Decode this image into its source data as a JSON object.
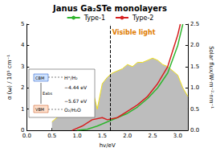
{
  "chart_data": {
    "type": "line",
    "title": "Janus Ga₂STe monolayers",
    "x_label": "hv/eV",
    "y_label": "α (ω) / 10⁵ cm⁻¹",
    "y2_label": "Solar flux/W·m⁻²·nm⁻¹",
    "xlim": [
      0,
      3.2
    ],
    "xticks": [
      {
        "value": 0,
        "label": "0.0"
      },
      {
        "value": 0.5,
        "label": "0.5"
      },
      {
        "value": 1,
        "label": "1.0"
      },
      {
        "value": 1.5,
        "label": "1.5"
      },
      {
        "value": 2,
        "label": "2.0"
      },
      {
        "value": 2.5,
        "label": "2.5"
      },
      {
        "value": 3,
        "label": "3.0"
      }
    ],
    "ylim": [
      0,
      5
    ],
    "yticks": [
      0,
      1,
      2,
      3,
      4,
      5
    ],
    "y2lim": [
      0,
      2.5
    ],
    "y2ticks": [
      {
        "value": 0,
        "label": "0.0"
      },
      {
        "value": 0.5,
        "label": "0.5"
      },
      {
        "value": 1,
        "label": "1.0"
      },
      {
        "value": 1.5,
        "label": "1.5"
      },
      {
        "value": 2,
        "label": "2.0"
      },
      {
        "value": 2.5,
        "label": "2.5"
      }
    ],
    "legend": "top",
    "series": [
      {
        "type": "area",
        "axis": "y2",
        "color": "#f2e21b",
        "x": [
          0.5,
          0.6,
          0.7,
          0.8,
          0.9,
          1.0,
          1.1,
          1.2,
          1.3,
          1.4,
          1.5,
          1.6,
          1.7,
          1.8,
          1.9,
          2.0,
          2.1,
          2.2,
          2.3,
          2.4,
          2.5,
          2.6,
          2.7,
          2.8,
          2.9,
          3.0,
          3.1,
          3.2
        ],
        "values": [
          0.2,
          0.3,
          0.4,
          0.35,
          0.6,
          0.75,
          0.5,
          0.9,
          1.0,
          0.5,
          1.1,
          1.25,
          1.35,
          1.4,
          1.45,
          1.55,
          1.5,
          1.6,
          1.6,
          1.65,
          1.7,
          1.65,
          1.55,
          1.5,
          1.4,
          1.3,
          1.0,
          0.8
        ]
      },
      {
        "name": "Type-1",
        "color": "#2fb52f",
        "x": [
          1.0,
          1.2,
          1.4,
          1.6,
          1.8,
          2.0,
          2.2,
          2.4,
          2.6,
          2.8,
          3.0,
          3.1
        ],
        "values": [
          0,
          0.05,
          0.2,
          0.4,
          0.6,
          0.8,
          1.1,
          1.5,
          2.0,
          2.7,
          4.0,
          5.0
        ]
      },
      {
        "name": "Type-2",
        "color": "#d62020",
        "x": [
          0.9,
          1.1,
          1.3,
          1.5,
          1.6,
          1.8,
          2.0,
          2.2,
          2.4,
          2.6,
          2.8,
          3.0,
          3.05
        ],
        "values": [
          0,
          0.2,
          0.5,
          0.6,
          0.5,
          0.6,
          0.9,
          1.2,
          1.6,
          2.2,
          3.0,
          4.5,
          5.0
        ]
      }
    ],
    "annotations": [
      {
        "text": "Visible light",
        "x": 1.65
      }
    ],
    "band_diagram": {
      "cbm": "CBM",
      "vbm": "VBM",
      "reduction": "H⁺/H₂",
      "oxidation": "O₂/H₂O",
      "reduction_level": "−4.44 eV",
      "oxidation_level": "−5.67 eV",
      "gap": "Eabs"
    }
  }
}
